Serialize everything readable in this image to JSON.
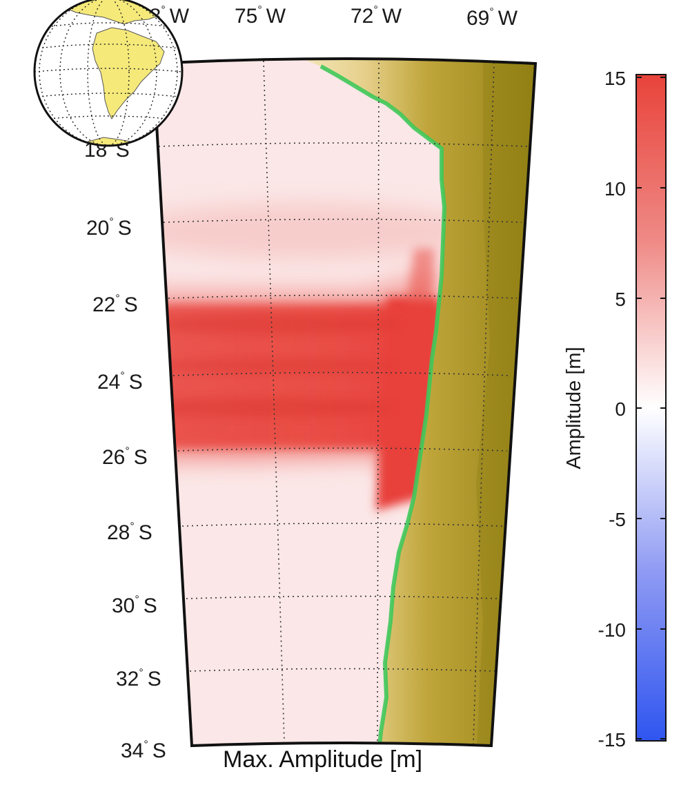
{
  "map": {
    "title": "Max. Amplitude [m]",
    "lon_labels": [
      {
        "value": "78",
        "hem": "W"
      },
      {
        "value": "75",
        "hem": "W"
      },
      {
        "value": "72",
        "hem": "W"
      },
      {
        "value": "69",
        "hem": "W"
      }
    ],
    "lat_labels": [
      {
        "value": "18",
        "hem": "S"
      },
      {
        "value": "20",
        "hem": "S"
      },
      {
        "value": "22",
        "hem": "S"
      },
      {
        "value": "24",
        "hem": "S"
      },
      {
        "value": "26",
        "hem": "S"
      },
      {
        "value": "28",
        "hem": "S"
      },
      {
        "value": "30",
        "hem": "S"
      },
      {
        "value": "32",
        "hem": "S"
      },
      {
        "value": "34",
        "hem": "S"
      }
    ],
    "colors": {
      "ocean_background": "#fbe7e7",
      "tsunami_max": "#e8413a",
      "land_low": "#f2e3b3",
      "land_high": "#8f7d10",
      "coast_green": "#3fc85a"
    }
  },
  "colorbar": {
    "title": "Amplitude [m]",
    "ticks": [
      "15",
      "10",
      "5",
      "0",
      "-5",
      "-10",
      "-15"
    ],
    "range": [
      -15,
      15
    ],
    "colors": {
      "top": "#e8433a",
      "middle": "#ffffff",
      "bottom": "#2f55f0"
    }
  },
  "globe_inset": {
    "colors": {
      "land": "#f5e97a",
      "ocean": "#ffffff"
    }
  }
}
